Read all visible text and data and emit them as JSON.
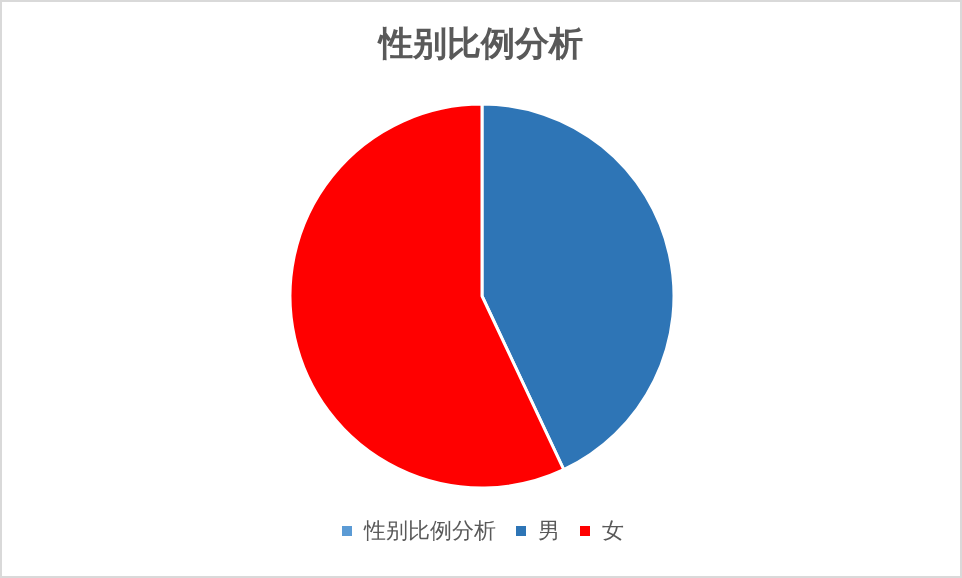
{
  "chart_data": {
    "type": "pie",
    "title": "性别比例分析",
    "categories": [
      "性别比例分析",
      "男",
      "女"
    ],
    "values": [
      0,
      43,
      57
    ],
    "colors": [
      "#5b9bd5",
      "#2e75b6",
      "#ff0000"
    ],
    "legend": "bottom"
  }
}
